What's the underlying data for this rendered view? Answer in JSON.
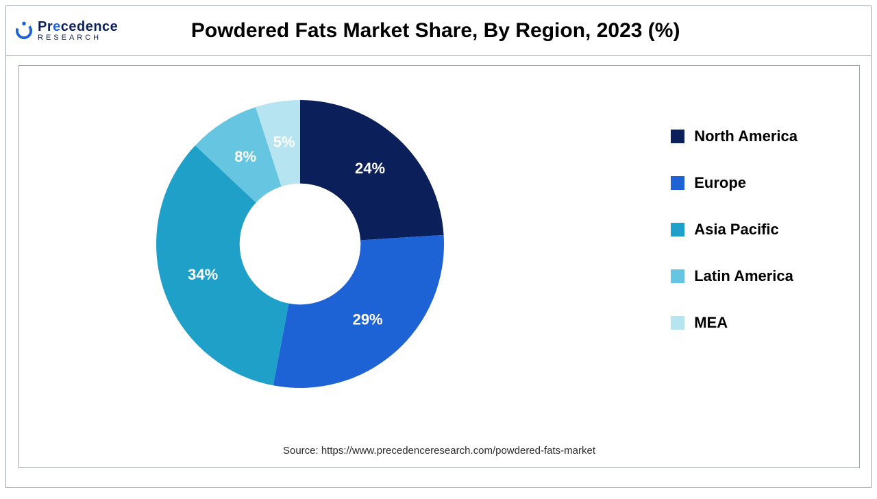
{
  "logo": {
    "line1_pre": "Pr",
    "line1_accent": "e",
    "line1_post": "cedence",
    "line2": "RESEARCH",
    "mark_color": "#1e63d6",
    "text_color": "#0b1f5a"
  },
  "title": "Powdered Fats Market Share, By Region, 2023 (%)",
  "chart": {
    "type": "donut",
    "start_angle_deg": 0,
    "inner_radius_ratio": 0.42,
    "background": "#ffffff",
    "label_fontsize": 22,
    "label_fontweight": "700",
    "label_color": "#ffffff",
    "slices": [
      {
        "label": "North America",
        "value": 24,
        "display": "24%",
        "color": "#0b1f5a"
      },
      {
        "label": "Europe",
        "value": 29,
        "display": "29%",
        "color": "#1e63d6"
      },
      {
        "label": "Asia Pacific",
        "value": 34,
        "display": "34%",
        "color": "#1ea0c9"
      },
      {
        "label": "Latin America",
        "value": 8,
        "display": "8%",
        "color": "#66c5e0"
      },
      {
        "label": "MEA",
        "value": 5,
        "display": "5%",
        "color": "#b6e4f0"
      }
    ]
  },
  "legend": {
    "fontsize": 22,
    "fontweight": "700",
    "text_color": "#000000",
    "swatch_size": 20
  },
  "source": "Source: https://www.precedenceresearch.com/powdered-fats-market",
  "frame_border_color": "#9aa0a6"
}
